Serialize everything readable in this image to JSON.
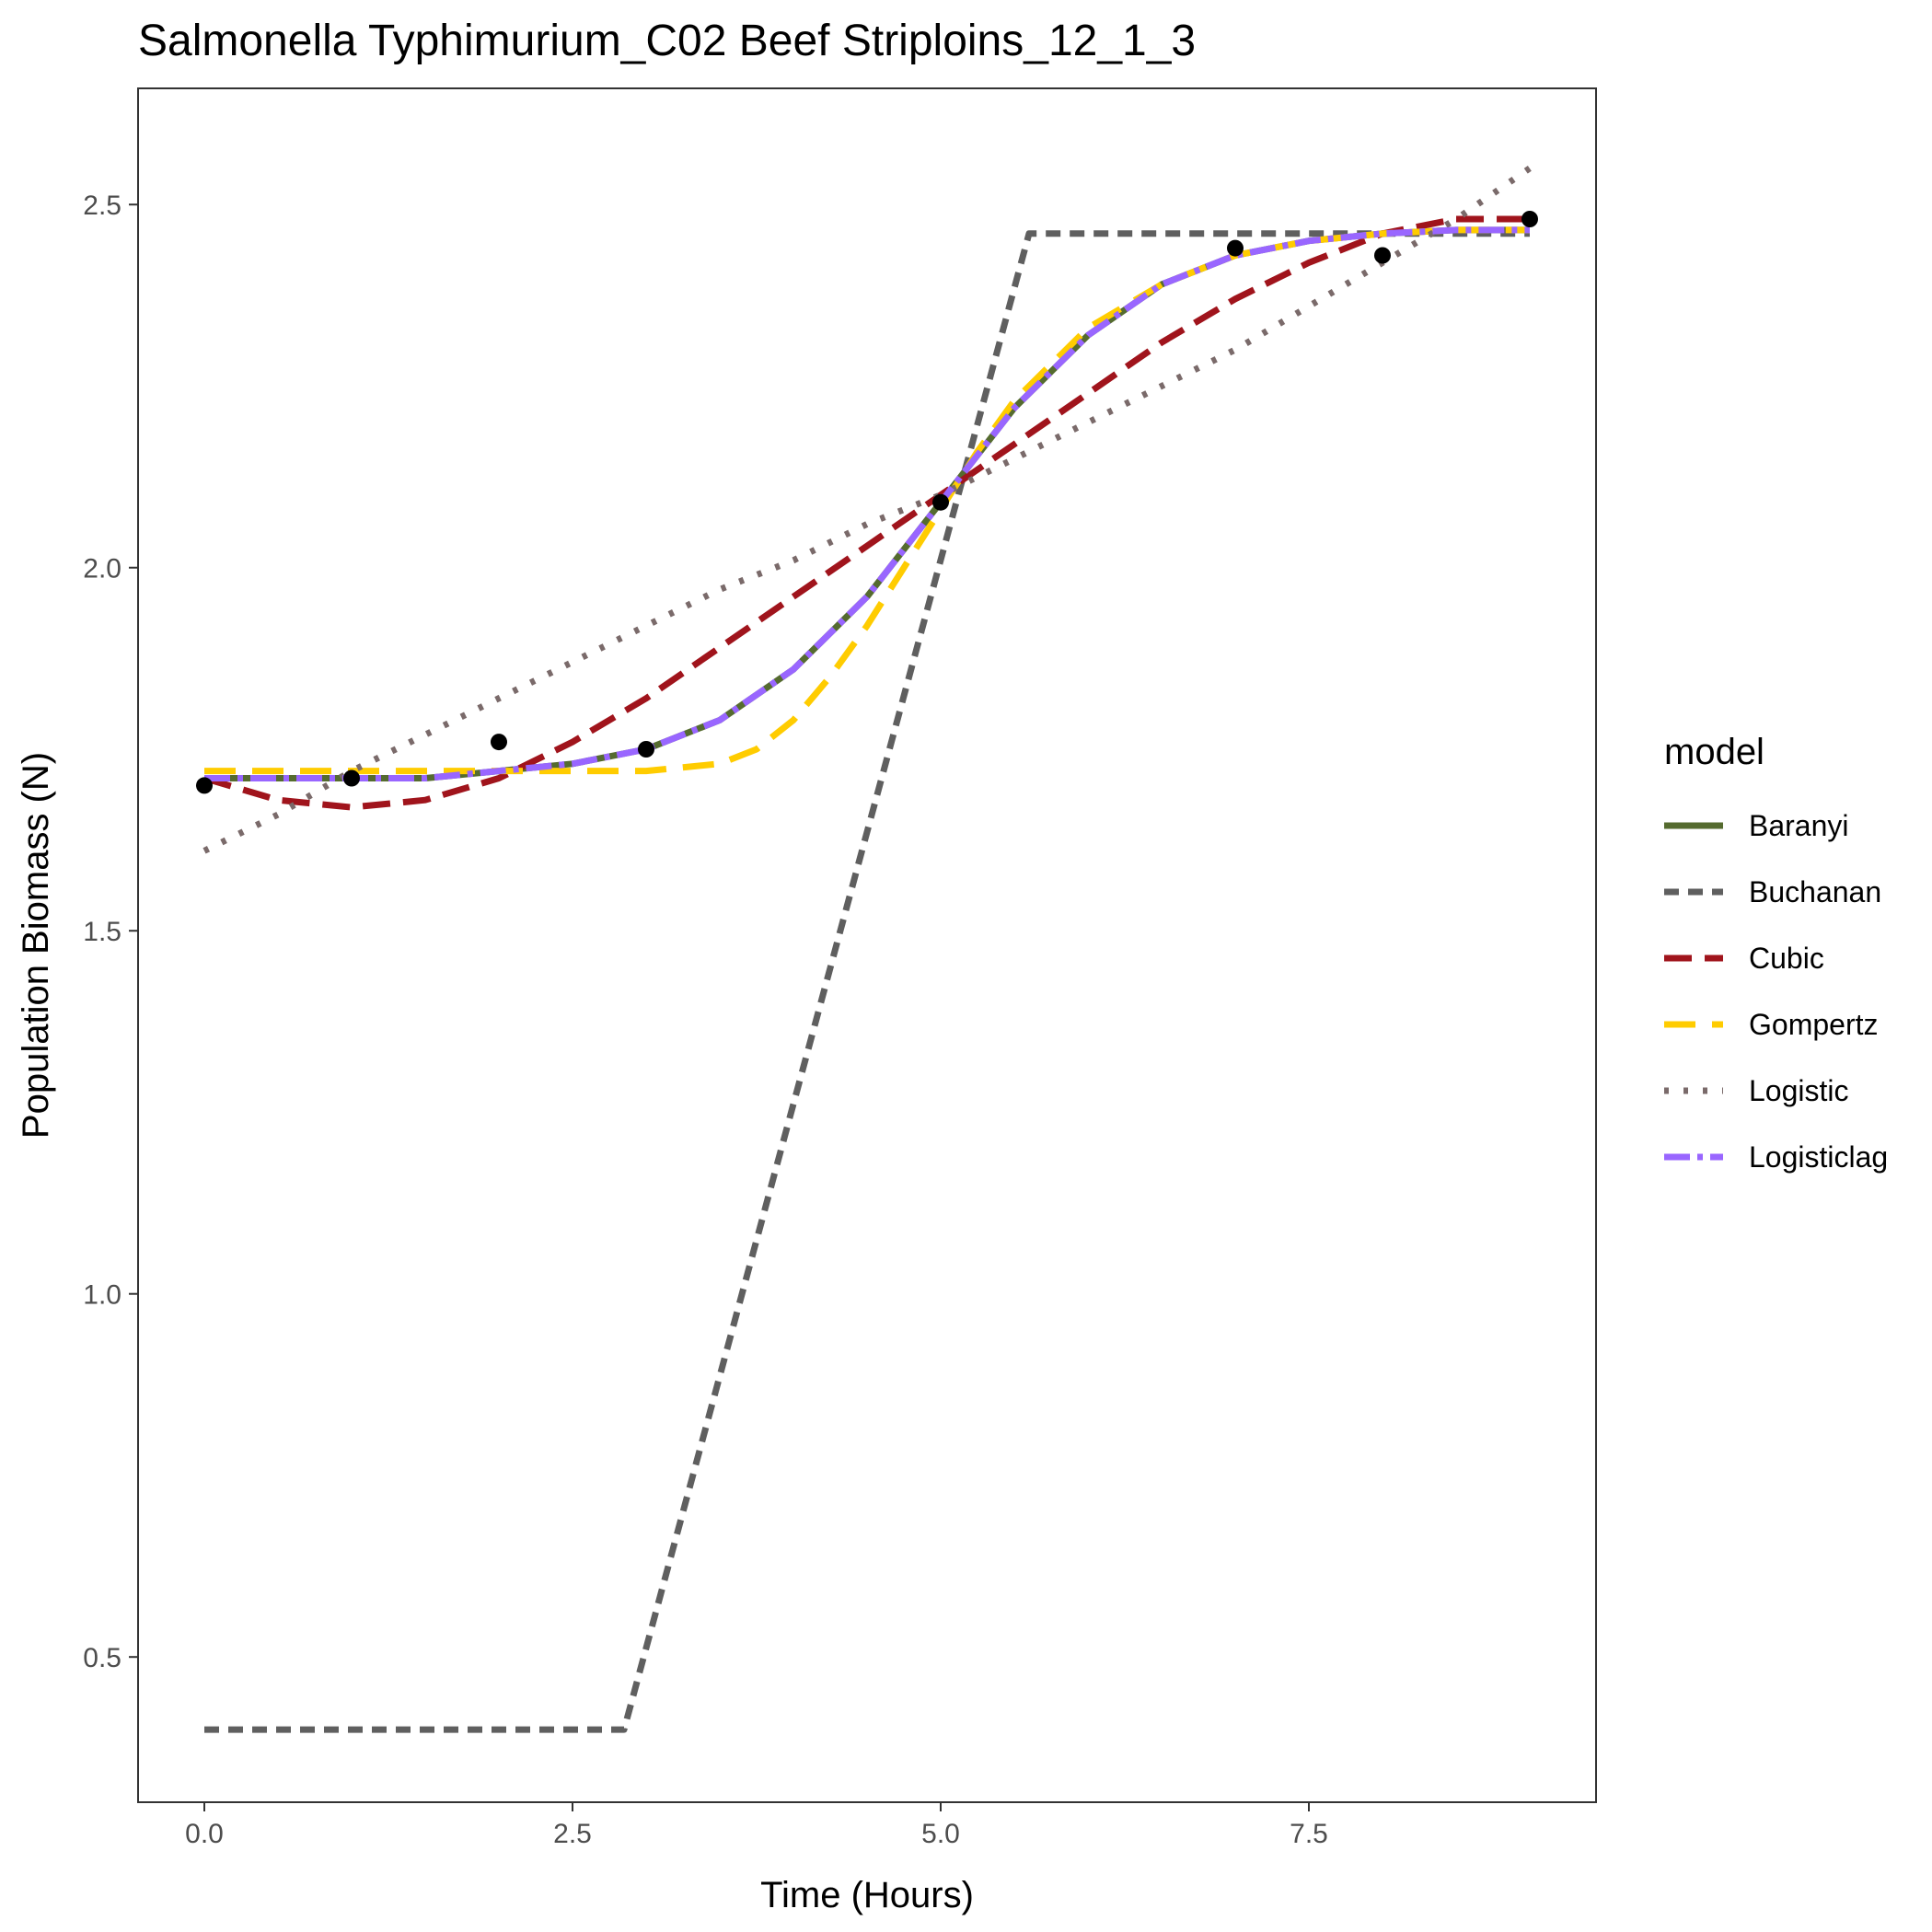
{
  "chart_data": {
    "type": "line",
    "title": "Salmonella Typhimurium_C02 Beef Striploins_12_1_3",
    "xlabel": "Time (Hours)",
    "ylabel": "Population Biomass (N)",
    "xlim": [
      -0.45,
      9.45
    ],
    "ylim": [
      0.3,
      2.66
    ],
    "x_ticks": [
      0.0,
      2.5,
      5.0,
      7.5
    ],
    "x_tick_labels": [
      "0.0",
      "2.5",
      "5.0",
      "7.5"
    ],
    "y_ticks": [
      0.5,
      1.0,
      1.5,
      2.0,
      2.5
    ],
    "y_tick_labels": [
      "0.5",
      "1.0",
      "1.5",
      "2.0",
      "2.5"
    ],
    "grid": false,
    "legend_title": "model",
    "legend_position": "right",
    "observed_points": {
      "x": [
        0,
        1,
        2,
        3,
        5,
        7,
        8,
        9
      ],
      "y": [
        1.7,
        1.71,
        1.76,
        1.75,
        2.09,
        2.44,
        2.43,
        2.48
      ]
    },
    "series": [
      {
        "name": "Baranyi",
        "color": "#556b2f",
        "dash": "solid",
        "x": [
          0,
          0.5,
          1,
          1.5,
          2,
          2.5,
          3,
          3.5,
          4,
          4.5,
          5,
          5.5,
          6,
          6.5,
          7,
          7.5,
          8,
          8.5,
          9
        ],
        "y": [
          1.71,
          1.71,
          1.71,
          1.71,
          1.72,
          1.73,
          1.75,
          1.79,
          1.86,
          1.96,
          2.09,
          2.22,
          2.32,
          2.39,
          2.43,
          2.45,
          2.46,
          2.465,
          2.465
        ]
      },
      {
        "name": "Buchanan",
        "color": "#5f5f5f",
        "dash": "16 10",
        "x": [
          0,
          2.85,
          5.6,
          9
        ],
        "y": [
          0.4,
          0.4,
          2.46,
          2.46
        ]
      },
      {
        "name": "Cubic",
        "color": "#a0141c",
        "dash": "30 14",
        "x": [
          0,
          0.5,
          1,
          1.5,
          2,
          2.5,
          3,
          3.5,
          4,
          4.5,
          5,
          5.5,
          6,
          6.5,
          7,
          7.5,
          8,
          8.5,
          9
        ],
        "y": [
          1.71,
          1.68,
          1.67,
          1.68,
          1.71,
          1.76,
          1.82,
          1.89,
          1.96,
          2.03,
          2.1,
          2.17,
          2.24,
          2.31,
          2.37,
          2.42,
          2.46,
          2.48,
          2.48
        ]
      },
      {
        "name": "Gompertz",
        "color": "#ffcc00",
        "dash": "34 18",
        "x": [
          0,
          0.5,
          1,
          1.5,
          2,
          2.5,
          3,
          3.5,
          3.75,
          4,
          4.25,
          4.5,
          4.75,
          5,
          5.25,
          5.5,
          6,
          6.5,
          7,
          7.5,
          8,
          8.5,
          9
        ],
        "y": [
          1.72,
          1.72,
          1.72,
          1.72,
          1.72,
          1.72,
          1.72,
          1.73,
          1.75,
          1.79,
          1.85,
          1.92,
          2.0,
          2.08,
          2.16,
          2.23,
          2.33,
          2.39,
          2.43,
          2.45,
          2.46,
          2.465,
          2.465
        ]
      },
      {
        "name": "Logistic",
        "color": "#7a6a6a",
        "dash": "5 16",
        "x": [
          0,
          0.5,
          1,
          1.5,
          2,
          2.5,
          3,
          3.5,
          4,
          4.5,
          5,
          5.5,
          6,
          6.5,
          7,
          7.5,
          8,
          8.5,
          9
        ],
        "y": [
          1.61,
          1.66,
          1.72,
          1.77,
          1.82,
          1.87,
          1.92,
          1.97,
          2.01,
          2.06,
          2.1,
          2.15,
          2.2,
          2.25,
          2.3,
          2.36,
          2.42,
          2.48,
          2.55
        ]
      },
      {
        "name": "Logisticlag",
        "color": "#9966ff",
        "dash": "28 8 6 8",
        "x": [
          0,
          0.5,
          1,
          1.5,
          2,
          2.5,
          3,
          3.5,
          4,
          4.5,
          5,
          5.5,
          6,
          6.5,
          7,
          7.5,
          8,
          8.5,
          9
        ],
        "y": [
          1.71,
          1.71,
          1.71,
          1.71,
          1.72,
          1.73,
          1.75,
          1.79,
          1.86,
          1.96,
          2.09,
          2.22,
          2.32,
          2.39,
          2.43,
          2.45,
          2.46,
          2.465,
          2.465
        ]
      }
    ]
  }
}
